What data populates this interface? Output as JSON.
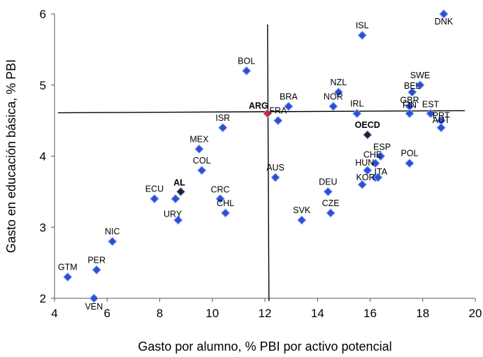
{
  "chart_data": {
    "type": "scatter",
    "xlabel": "Gasto por alumno, % PBI por activo potencial",
    "ylabel": "Gasto en educación básica, % PBI",
    "xlim": [
      4,
      20
    ],
    "ylim": [
      2,
      6
    ],
    "xticks": [
      4,
      6,
      8,
      10,
      12,
      14,
      16,
      18,
      20
    ],
    "yticks": [
      2,
      3,
      4,
      5,
      6
    ],
    "grid": false,
    "reference_lines": {
      "x": 12.1,
      "y": 4.62
    },
    "colors": {
      "default": "#2f4fd0",
      "highlight_arg": "#d42a2a",
      "highlight_oecd": "#222222",
      "highlight_al": "#222222"
    },
    "points": [
      {
        "label": "DNK",
        "x": 18.8,
        "y": 6.0
      },
      {
        "label": "ISL",
        "x": 15.7,
        "y": 5.7
      },
      {
        "label": "BOL",
        "x": 11.3,
        "y": 5.2
      },
      {
        "label": "SWE",
        "x": 17.9,
        "y": 5.0
      },
      {
        "label": "BEL",
        "x": 17.6,
        "y": 4.9
      },
      {
        "label": "NZL",
        "x": 14.8,
        "y": 4.9
      },
      {
        "label": "GBR",
        "x": 17.5,
        "y": 4.7
      },
      {
        "label": "BRA",
        "x": 12.9,
        "y": 4.7
      },
      {
        "label": "NOR",
        "x": 14.6,
        "y": 4.7
      },
      {
        "label": "IRL",
        "x": 15.5,
        "y": 4.6
      },
      {
        "label": "FIN",
        "x": 17.5,
        "y": 4.6
      },
      {
        "label": "EST",
        "x": 18.3,
        "y": 4.6
      },
      {
        "label": "PRT",
        "x": 18.7,
        "y": 4.5
      },
      {
        "label": "AUT",
        "x": 18.7,
        "y": 4.4
      },
      {
        "label": "ARG",
        "x": 12.1,
        "y": 4.6,
        "highlight": "arg"
      },
      {
        "label": "FRA",
        "x": 12.5,
        "y": 4.5
      },
      {
        "label": "ISR",
        "x": 10.4,
        "y": 4.4
      },
      {
        "label": "OECD",
        "x": 15.9,
        "y": 4.3,
        "highlight": "oecd"
      },
      {
        "label": "MEX",
        "x": 9.5,
        "y": 4.1
      },
      {
        "label": "ESP",
        "x": 16.4,
        "y": 4.0
      },
      {
        "label": "CHE",
        "x": 16.2,
        "y": 3.9
      },
      {
        "label": "POL",
        "x": 17.5,
        "y": 3.9
      },
      {
        "label": "HUN",
        "x": 15.9,
        "y": 3.8
      },
      {
        "label": "COL",
        "x": 9.6,
        "y": 3.8
      },
      {
        "label": "KOR",
        "x": 16.2,
        "y": 3.7
      },
      {
        "label": "ITA",
        "x": 16.3,
        "y": 3.7
      },
      {
        "label": "AUS",
        "x": 12.4,
        "y": 3.7
      },
      {
        "label": "SVN",
        "x": 15.7,
        "y": 3.6
      },
      {
        "label": "DEU",
        "x": 14.4,
        "y": 3.5
      },
      {
        "label": "AL",
        "x": 8.8,
        "y": 3.5,
        "highlight": "al"
      },
      {
        "label": "ECU",
        "x": 7.8,
        "y": 3.4
      },
      {
        "label": "URY",
        "x": 8.6,
        "y": 3.4
      },
      {
        "label": "CRC",
        "x": 10.3,
        "y": 3.4
      },
      {
        "label": "CHL",
        "x": 10.5,
        "y": 3.2
      },
      {
        "label": "CZE",
        "x": 14.5,
        "y": 3.2
      },
      {
        "label": "SVK",
        "x": 13.4,
        "y": 3.1
      },
      {
        "label": "URY2",
        "x": 8.7,
        "y": 3.1
      },
      {
        "label": "NIC",
        "x": 6.2,
        "y": 2.8
      },
      {
        "label": "PER",
        "x": 5.6,
        "y": 2.4
      },
      {
        "label": "GTM",
        "x": 4.5,
        "y": 2.3
      },
      {
        "label": "VEN",
        "x": 5.5,
        "y": 2.0
      }
    ]
  }
}
